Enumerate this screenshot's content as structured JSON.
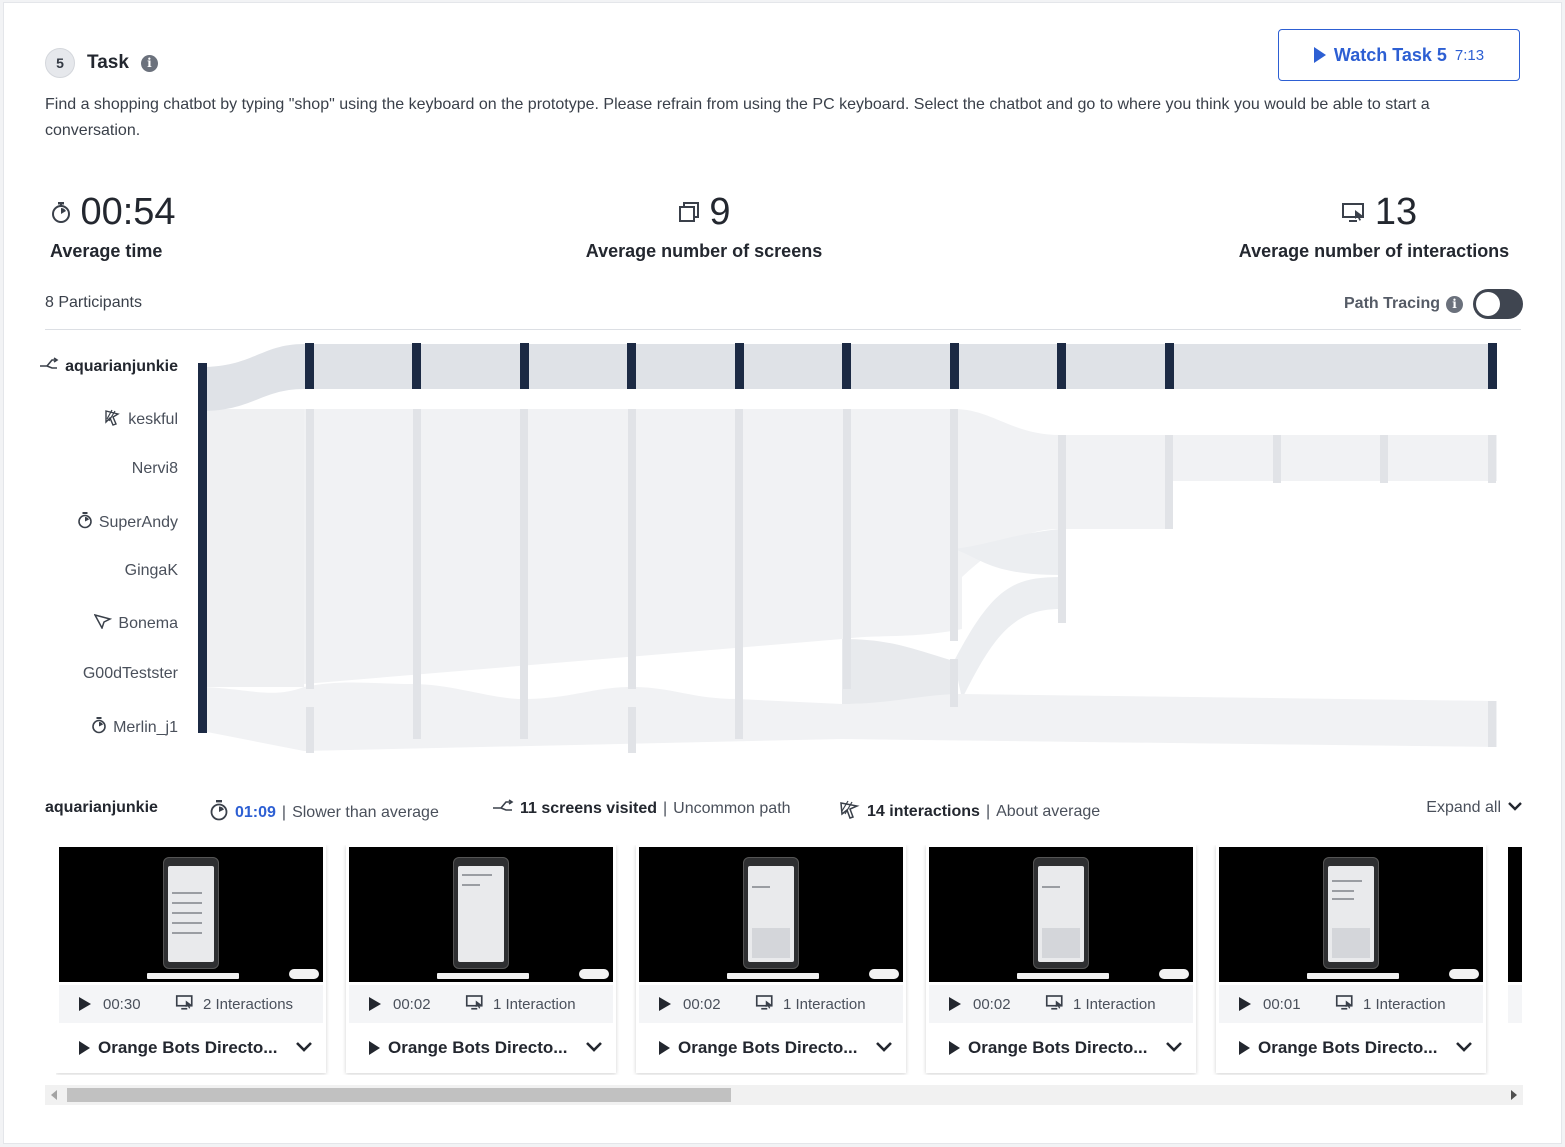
{
  "task": {
    "number": "5",
    "title": "Task",
    "description": "Find a shopping chatbot by typing \"shop\" using the keyboard on the prototype. Please refrain from using the PC keyboard. Select the chatbot and go to where you think you would be able to start a conversation.",
    "watch_label": "Watch Task 5",
    "watch_duration": "7:13"
  },
  "stats": {
    "avg_time": "00:54",
    "avg_time_label": "Average time",
    "avg_screens": "9",
    "avg_screens_label": "Average number of screens",
    "avg_interactions": "13",
    "avg_interactions_label": "Average number of interactions"
  },
  "participants_count_label": "8 Participants",
  "path_tracing": {
    "label": "Path Tracing",
    "enabled": false
  },
  "participants": [
    {
      "name": "aquarianjunkie",
      "icon": "uncommon-path-icon",
      "active": true
    },
    {
      "name": "keskful",
      "icon": "interactions-icon",
      "active": false
    },
    {
      "name": "Nervi8",
      "icon": "",
      "active": false
    },
    {
      "name": "SuperAndy",
      "icon": "stopwatch-icon",
      "active": false
    },
    {
      "name": "GingaK",
      "icon": "",
      "active": false
    },
    {
      "name": "Bonema",
      "icon": "tap-icon",
      "active": false
    },
    {
      "name": "G00dTestster",
      "icon": "",
      "active": false
    },
    {
      "name": "Merlin_j1",
      "icon": "stopwatch-icon",
      "active": false
    }
  ],
  "selected": {
    "name": "aquarianjunkie",
    "time": "01:09",
    "time_note": "Slower than average",
    "screens": "11 screens visited",
    "screens_note": "Uncommon path",
    "interactions": "14 interactions",
    "interactions_note": "About average",
    "expand_label": "Expand all"
  },
  "screens": [
    {
      "time": "00:30",
      "interactions": "2 Interactions",
      "title": "Orange Bots Directo..."
    },
    {
      "time": "00:02",
      "interactions": "1 Interaction",
      "title": "Orange Bots Directo..."
    },
    {
      "time": "00:02",
      "interactions": "1 Interaction",
      "title": "Orange Bots Directo..."
    },
    {
      "time": "00:02",
      "interactions": "1 Interaction",
      "title": "Orange Bots Directo..."
    },
    {
      "time": "00:01",
      "interactions": "1 Interaction",
      "title": "Orange Bots Directo..."
    }
  ],
  "colors": {
    "accent": "#2d5fd3",
    "navy": "#1c2a44",
    "flow_light": "#eceef1",
    "flow_active": "#dfe2e7"
  }
}
